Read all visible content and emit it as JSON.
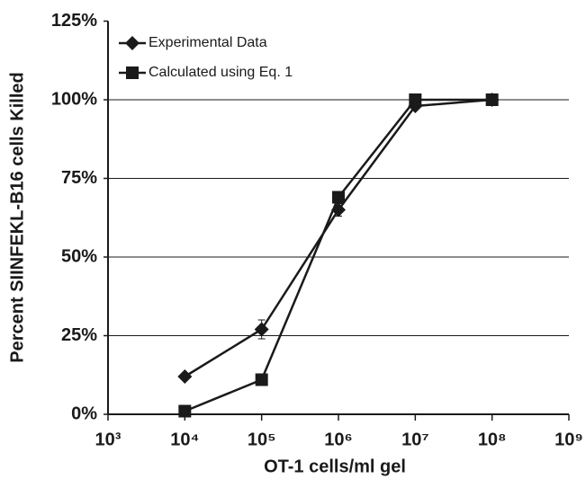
{
  "chart_data": {
    "type": "line",
    "x_label": "OT-1 cells/ml gel",
    "y_label": "Percent SIINFEKL-B16 cells Killed",
    "x": [
      10000,
      100000,
      1000000,
      10000000,
      100000000
    ],
    "x_log": true,
    "series": [
      {
        "name": "Experimental Data",
        "color": "#1a1a1a",
        "marker": "diamond",
        "values": [
          12,
          27,
          65,
          98,
          100
        ],
        "errors": [
          0,
          3,
          2,
          0,
          0
        ]
      },
      {
        "name": "Calculated using Eq. 1",
        "color": "#1a1a1a",
        "marker": "square",
        "values": [
          1,
          11,
          69,
          100,
          100
        ]
      }
    ],
    "xlim": [
      1000,
      1000000000
    ],
    "xticks": [
      {
        "value": 1000,
        "label": "10³"
      },
      {
        "value": 10000,
        "label": "10⁴"
      },
      {
        "value": 100000,
        "label": "10⁵"
      },
      {
        "value": 1000000,
        "label": "10⁶"
      },
      {
        "value": 10000000,
        "label": "10⁷"
      },
      {
        "value": 100000000,
        "label": "10⁸"
      },
      {
        "value": 1000000000,
        "label": "10⁹"
      }
    ],
    "ylim": [
      0,
      125
    ],
    "yticks": [
      {
        "value": 0,
        "label": "0%"
      },
      {
        "value": 25,
        "label": "25%"
      },
      {
        "value": 50,
        "label": "50%"
      },
      {
        "value": 75,
        "label": "75%"
      },
      {
        "value": 100,
        "label": "100%"
      },
      {
        "value": 125,
        "label": "125%"
      }
    ],
    "grid": true,
    "legend": "top-left"
  }
}
